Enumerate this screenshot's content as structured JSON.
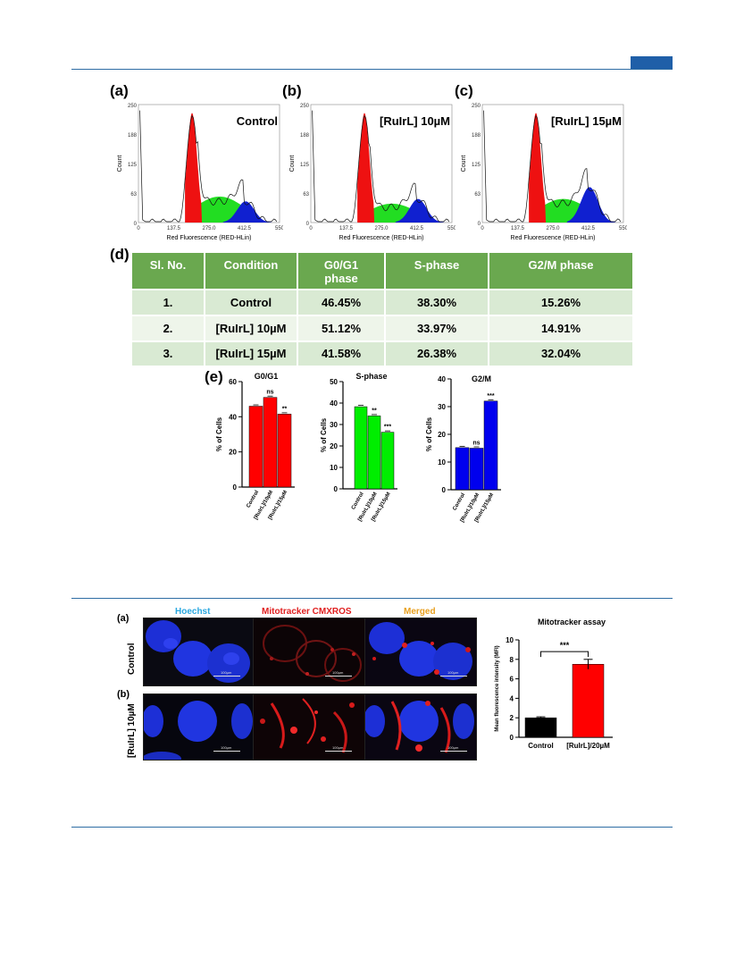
{
  "fig1": {
    "panel_a": "(a)",
    "panel_b": "(b)",
    "panel_c": "(c)",
    "panel_d": "(d)",
    "panel_e": "(e)",
    "histograms": [
      {
        "title": "Control",
        "ylabel": "Count",
        "xlabel": "Red Fluorescence (RED-HLin)",
        "yticks": [
          "250",
          "188",
          "125",
          "63",
          "0"
        ],
        "xticks": [
          "0",
          "137.5",
          "275.0",
          "412.5",
          "550"
        ]
      },
      {
        "title": "[RuIrL] 10µM",
        "ylabel": "Count",
        "xlabel": "Red Fluorescence (RED-HLin)",
        "yticks": [
          "250",
          "188",
          "125",
          "63",
          "0"
        ],
        "xticks": [
          "0",
          "137.5",
          "275.0",
          "412.5",
          "550"
        ]
      },
      {
        "title": "[RuIrL] 15µM",
        "ylabel": "Count",
        "xlabel": "Red Fluorescence (RED-HLin)",
        "yticks": [
          "250",
          "188",
          "125",
          "63",
          "0"
        ],
        "xticks": [
          "0",
          "137.5",
          "275.0",
          "412.5",
          "550"
        ]
      }
    ],
    "table": {
      "headers": [
        "Sl. No.",
        "Condition",
        "G0/G1 phase",
        "S-phase",
        "G2/M phase"
      ],
      "rows": [
        [
          "1.",
          "Control",
          "46.45%",
          "38.30%",
          "15.26%"
        ],
        [
          "2.",
          "[RuIrL] 10µM",
          "51.12%",
          "33.97%",
          "14.91%"
        ],
        [
          "3.",
          "[RuIrL] 15µM",
          "41.58%",
          "26.38%",
          "32.04%"
        ]
      ]
    }
  },
  "fig2": {
    "panel_a": "(a)",
    "panel_b": "(b)",
    "col_labels": [
      "Hoechst",
      "Mitotracker CMXROS",
      "Merged"
    ],
    "row_labels": [
      "Control",
      "[RuIrL] 10µM"
    ],
    "scalebar_label": "100µm"
  },
  "chart_data": [
    {
      "type": "bar",
      "title": "G0/G1",
      "ylabel": "% of Cells",
      "categories": [
        "Control",
        "[RuIrL]/10µM",
        "[RuIrL]/15µM"
      ],
      "values": [
        46,
        51,
        41.5
      ],
      "ylim": [
        0,
        60
      ],
      "yticks": [
        0,
        20,
        40,
        60
      ],
      "annotations": [
        "",
        "ns",
        "**"
      ],
      "color": "#ff0000"
    },
    {
      "type": "bar",
      "title": "S-phase",
      "ylabel": "% of Cells",
      "categories": [
        "Control",
        "[RuIrL]/10µM",
        "[RuIrL]/15µM"
      ],
      "values": [
        38.3,
        34,
        26.4
      ],
      "ylim": [
        0,
        50
      ],
      "yticks": [
        0,
        10,
        20,
        30,
        40,
        50
      ],
      "annotations": [
        "",
        "**",
        "***"
      ],
      "color": "#00ee00"
    },
    {
      "type": "bar",
      "title": "G2/M",
      "ylabel": "% of Cells",
      "categories": [
        "Control",
        "[RuIrL]/10µM",
        "[RuIrL]/15µM"
      ],
      "values": [
        15.2,
        15,
        32
      ],
      "ylim": [
        0,
        40
      ],
      "yticks": [
        0,
        10,
        20,
        30,
        40
      ],
      "annotations": [
        "",
        "ns",
        "***"
      ],
      "color": "#0000ee"
    },
    {
      "type": "bar",
      "title": "Mitotracker assay",
      "ylabel": "Mean fluorescence intensity (MFI)",
      "categories": [
        "Control",
        "[RuIrL]/20µM"
      ],
      "values": [
        2,
        7.5
      ],
      "errors": [
        0.1,
        0.5
      ],
      "ylim": [
        0,
        10
      ],
      "yticks": [
        0,
        2,
        4,
        6,
        8,
        10
      ],
      "annotations": [
        "",
        "***"
      ],
      "colors": [
        "#000000",
        "#ff0000"
      ]
    }
  ]
}
